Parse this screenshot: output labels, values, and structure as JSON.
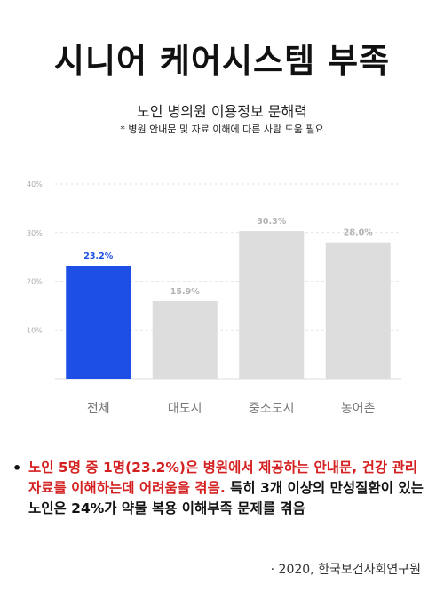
{
  "title": "시니어 케어시스템 부족",
  "subtitle": "노인 병의원 이용정보 문해력",
  "note": "* 병원 안내문 및 자료 이해에 다른 사람 도움 필요",
  "chart_data": {
    "type": "bar",
    "categories": [
      "전체",
      "대도시",
      "중소도시",
      "농어촌"
    ],
    "values": [
      23.2,
      15.9,
      30.3,
      28.0
    ],
    "value_labels": [
      "23.2%",
      "15.9%",
      "30.3%",
      "28.0%"
    ],
    "yticks": [
      "40%",
      "30%",
      "20%",
      "10%"
    ],
    "ytick_values": [
      40,
      30,
      20,
      10
    ],
    "ylim": [
      0,
      40
    ],
    "colors": {
      "highlight": "#1d4fe6",
      "bar": "#dddddd",
      "highlight_label": "#1d4fe6",
      "label": "#b3b3b3"
    },
    "grid": true
  },
  "bullet": {
    "red_text": "노인 5명 중 1명(23.2%)은 병원에서 제공하는 안내문, 건강 관리 자료를 이해하는데 어려움을 겪음.",
    "black_text": " 특히 3개 이상의 만성질환이 있는 노인은 24%가 약물 복용 이해부족 문제를 겪음"
  },
  "source": "· 2020, 한국보건사회연구원"
}
